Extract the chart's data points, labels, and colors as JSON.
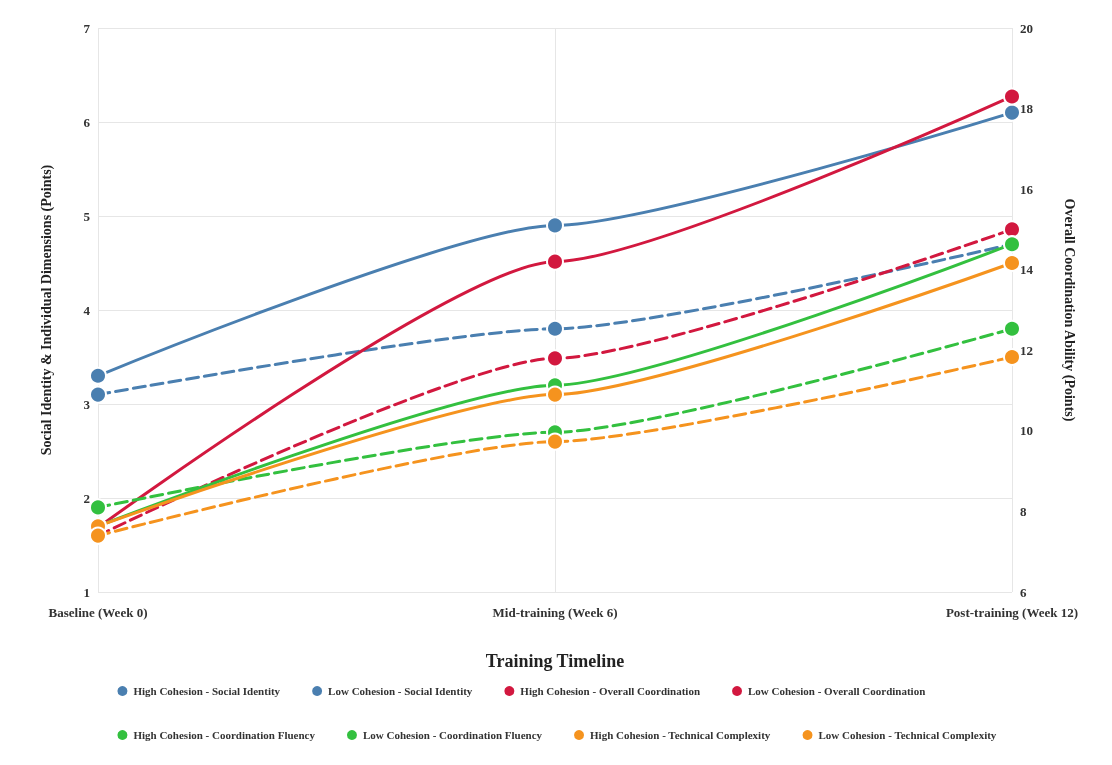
{
  "chart_data": {
    "type": "line",
    "xlabel": "Training Timeline",
    "ylabel": "Social Identity & Individual Dimensions (Points)",
    "y2label": "Overall Coordination Ability (Points)",
    "categories": [
      "Baseline (Week 0)",
      "Mid-training (Week 6)",
      "Post-training (Week 12)"
    ],
    "ylim": [
      1,
      7
    ],
    "yticks": [
      1,
      2,
      3,
      4,
      5,
      6,
      7
    ],
    "y2lim": [
      6,
      20
    ],
    "y2ticks": [
      6,
      8,
      10,
      12,
      14,
      16,
      18,
      20
    ],
    "grid": true,
    "legend": "bottom",
    "marker": "circle",
    "series": [
      {
        "name": "High Cohesion - Social Identity",
        "color": "#4a7fb0",
        "values": [
          3.3,
          4.9,
          6.1
        ],
        "line_style": "solid"
      },
      {
        "name": "Low Cohesion - Social Identity",
        "color": "#4a7fb0",
        "values": [
          3.1,
          3.8,
          4.7
        ],
        "line_style": "dashed"
      },
      {
        "name": "High Cohesion - Overall Coordination",
        "color": "#d2183f",
        "values": [
          7.6,
          14.2,
          18.3
        ],
        "line_style": "solid",
        "axis": "y2"
      },
      {
        "name": "Low Cohesion - Overall Coordination",
        "color": "#d2183f",
        "values": [
          7.4,
          11.8,
          15.0
        ],
        "line_style": "dashed",
        "axis": "y2"
      },
      {
        "name": "High Cohesion - Coordination Fluency",
        "color": "#33c03f",
        "values": [
          1.7,
          3.2,
          4.7
        ],
        "line_style": "solid"
      },
      {
        "name": "Low Cohesion - Coordination Fluency",
        "color": "#33c03f",
        "values": [
          1.9,
          2.7,
          3.8
        ],
        "line_style": "dashed"
      },
      {
        "name": "High Cohesion - Technical Complexity",
        "color": "#f5931e",
        "values": [
          1.7,
          3.1,
          4.5
        ],
        "line_style": "solid"
      },
      {
        "name": "Low Cohesion - Technical Complexity",
        "color": "#f5931e",
        "values": [
          1.6,
          2.6,
          3.5
        ],
        "line_style": "dashed"
      }
    ]
  }
}
